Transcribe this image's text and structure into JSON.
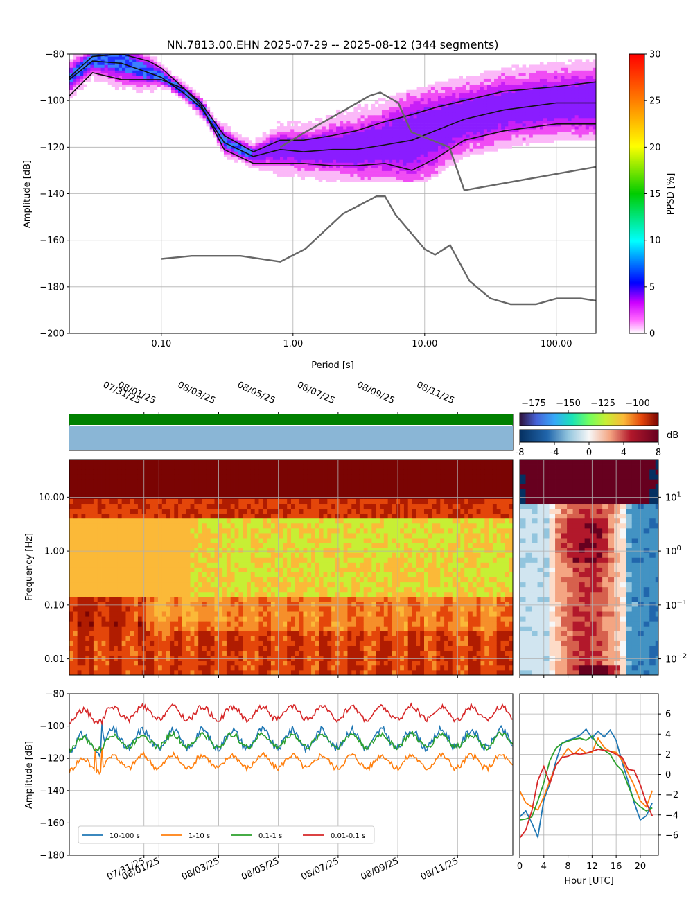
{
  "title": "NN.7813.00.EHN   2025-07-29 -- 2025-08-12  (344 segments)",
  "colors": {
    "series": [
      "#1f77b4",
      "#ff7f0e",
      "#2ca02c",
      "#d62728"
    ],
    "noise_model": "#666666",
    "availability_bar": "#008000",
    "gap_bar": "#8ab6d6"
  },
  "chart_data": [
    {
      "id": "ppsd",
      "type": "heatmap",
      "xlabel": "Period [s]",
      "ylabel": "Amplitude [dB]",
      "xscale": "log",
      "xlim": [
        0.02,
        200
      ],
      "ylim": [
        -200,
        -80
      ],
      "xticks": [
        0.1,
        1,
        10,
        100
      ],
      "xtick_labels": [
        "0.10",
        "1.00",
        "10.00",
        "100.00"
      ],
      "yticks": [
        -200,
        -180,
        -160,
        -140,
        -120,
        -100,
        -80
      ],
      "grid": true,
      "colorbar": {
        "label": "PPSD [%]",
        "range": [
          0,
          30
        ],
        "ticks": [
          0,
          5,
          10,
          15,
          20,
          25,
          30
        ]
      },
      "percentile_lines": [
        {
          "x": [
            0.02,
            0.03,
            0.05,
            0.08,
            0.1,
            0.15,
            0.2,
            0.3,
            0.5,
            0.8,
            1.2,
            2,
            3,
            5,
            8,
            12,
            20,
            40,
            100,
            200
          ],
          "y": [
            -90,
            -81,
            -80,
            -83,
            -86,
            -95,
            -101,
            -115,
            -122,
            -117,
            -117,
            -115,
            -113,
            -109,
            -106,
            -103,
            -100,
            -96,
            -94,
            -92
          ]
        },
        {
          "x": [
            0.02,
            0.03,
            0.05,
            0.08,
            0.1,
            0.15,
            0.2,
            0.3,
            0.5,
            0.8,
            1.2,
            2,
            3,
            5,
            8,
            12,
            20,
            40,
            100,
            200
          ],
          "y": [
            -91,
            -83,
            -84,
            -88,
            -90,
            -97,
            -103,
            -118,
            -124,
            -121,
            -122,
            -121,
            -121,
            -119,
            -117,
            -113,
            -108,
            -104,
            -101,
            -101
          ]
        },
        {
          "x": [
            0.02,
            0.03,
            0.05,
            0.08,
            0.1,
            0.15,
            0.2,
            0.3,
            0.5,
            0.8,
            1.2,
            2,
            3,
            5,
            8,
            12,
            20,
            40,
            100,
            200
          ],
          "y": [
            -98,
            -88,
            -91,
            -91,
            -91,
            -95,
            -102,
            -121,
            -127,
            -127,
            -127,
            -128,
            -128,
            -127,
            -130,
            -125,
            -117,
            -113,
            -110,
            -110
          ]
        }
      ],
      "noise_models": [
        {
          "name": "NHNM",
          "x": [
            0.1,
            0.17,
            0.4,
            0.8,
            1.24,
            2.4,
            4.3,
            5,
            6,
            10,
            12,
            15.6,
            21.9,
            31.6,
            45,
            70,
            101,
            154,
            200
          ],
          "y": [
            -168,
            -166.7,
            -166.7,
            -169.2,
            -163.7,
            -148.6,
            -141.1,
            -141.1,
            -149,
            -163.8,
            -166.2,
            -162.1,
            -177.5,
            -185,
            -187.5,
            -187.5,
            -185,
            -185,
            -186
          ]
        },
        {
          "name": "NLNM",
          "x": [
            0.8,
            1.2,
            2,
            3.8,
            4.6,
            6.3,
            7.9,
            15.4,
            20,
            354
          ],
          "y": [
            -120,
            -114,
            -107,
            -98,
            -96.5,
            -101,
            -113.5,
            -120,
            -138.5,
            -126
          ]
        }
      ]
    },
    {
      "id": "spectrogram",
      "type": "heatmap",
      "ylabel": "Frequency [Hz]",
      "yscale": "log",
      "ylim": [
        0.005,
        50
      ],
      "yticks": [
        0.01,
        0.1,
        1,
        10
      ],
      "ytick_labels": [
        "0.01",
        "0.10",
        "1.00",
        "10.00"
      ],
      "time_range": [
        "2025-07-29",
        "2025-08-12"
      ],
      "date_ticks": [
        "07/31/25",
        "08/01/25",
        "08/03/25",
        "08/05/25",
        "08/07/25",
        "08/09/25",
        "08/11/25"
      ],
      "colorbar": {
        "label": "",
        "range": [
          -185,
          -85
        ],
        "ticks": [
          -175,
          -150,
          -125,
          -100
        ]
      }
    },
    {
      "id": "diurnal",
      "type": "heatmap",
      "yscale": "log",
      "yticks": [
        0.01,
        0.1,
        1,
        10
      ],
      "ytick_labels": [
        "10<sup>-2</sup>",
        "10<sup>-1</sup>",
        "10<sup>0</sup>",
        "10<sup>1</sup>"
      ],
      "ytick_base": "10",
      "ytick_exps": [
        "−2",
        "−1",
        "0",
        "1"
      ],
      "colorbar": {
        "label": "dB",
        "range": [
          -8,
          8
        ],
        "ticks": [
          -8,
          -4,
          0,
          4,
          8
        ],
        "tick_labels": [
          "-8",
          "-4",
          "0",
          "4",
          "8"
        ]
      }
    },
    {
      "id": "band_timeseries",
      "type": "line",
      "ylabel": "Amplitude [dB]",
      "ylim": [
        -180,
        -80
      ],
      "yticks": [
        -180,
        -160,
        -140,
        -120,
        -100,
        -80
      ],
      "date_ticks": [
        "07/31/25",
        "08/01/25",
        "08/03/25",
        "08/05/25",
        "08/07/25",
        "08/09/25",
        "08/11/25"
      ],
      "grid": true,
      "legend": "bottom-left",
      "series": [
        {
          "name": "10-100 s",
          "mean": -108,
          "amp": 7
        },
        {
          "name": "1-10 s",
          "mean": -122,
          "amp": 5
        },
        {
          "name": "0.1-1 s",
          "mean": -109,
          "amp": 5
        },
        {
          "name": "0.01-0.1 s",
          "mean": -92,
          "amp": 5
        }
      ]
    },
    {
      "id": "band_diurnal",
      "type": "line",
      "xlabel": "Hour [UTC]",
      "xlim": [
        0,
        23
      ],
      "ylim": [
        -8,
        8
      ],
      "xticks": [
        0,
        4,
        8,
        12,
        16,
        20
      ],
      "yticks": [
        -6,
        -4,
        -2,
        0,
        2,
        4,
        6
      ],
      "ytick_labels": [
        "−6",
        "−4",
        "−2",
        "0",
        "2",
        "4",
        "6"
      ],
      "grid": true,
      "series": [
        {
          "name": "10-100 s",
          "x": [
            0,
            1,
            2,
            3,
            4,
            5,
            6,
            7,
            8,
            9,
            10,
            11,
            12,
            13,
            14,
            15,
            16,
            17,
            18,
            19,
            20,
            21,
            22
          ],
          "y": [
            -4.2,
            -3.6,
            -4.8,
            -6.2,
            -2.5,
            -0.9,
            1.3,
            3.1,
            3.4,
            3.6,
            3.9,
            4.5,
            3.6,
            4.3,
            3.7,
            4.4,
            3.4,
            1.2,
            -0.7,
            -2.8,
            -4.5,
            -4.1,
            -2.8
          ]
        },
        {
          "name": "1-10 s",
          "x": [
            0,
            1,
            2,
            3,
            4,
            5,
            6,
            7,
            8,
            9,
            10,
            11,
            12,
            13,
            14,
            15,
            16,
            17,
            18,
            19,
            20,
            21,
            22
          ],
          "y": [
            -1.6,
            -2.8,
            -3.2,
            -3.5,
            -2.2,
            -0.6,
            0.9,
            1.7,
            2.6,
            2.0,
            2.6,
            2.1,
            2.2,
            3.6,
            2.7,
            2.3,
            2.2,
            1.4,
            0.1,
            -1.1,
            -2.6,
            -3.2,
            -1.6
          ]
        },
        {
          "name": "0.1-1 s",
          "x": [
            0,
            1,
            2,
            3,
            4,
            5,
            6,
            7,
            8,
            9,
            10,
            11,
            12,
            13,
            14,
            15,
            16,
            17,
            18,
            19,
            20,
            21,
            22
          ],
          "y": [
            -4.5,
            -4.4,
            -4.2,
            -2.6,
            -0.8,
            1.4,
            2.6,
            3.1,
            3.3,
            3.5,
            3.6,
            3.4,
            3.8,
            2.9,
            2.4,
            2.0,
            1.0,
            0.4,
            -1.1,
            -2.6,
            -3.2,
            -3.6,
            -3.3
          ]
        },
        {
          "name": "0.01-0.1 s",
          "x": [
            0,
            1,
            2,
            3,
            4,
            5,
            6,
            7,
            8,
            9,
            10,
            11,
            12,
            13,
            14,
            15,
            16,
            17,
            18,
            19,
            20,
            21,
            22
          ],
          "y": [
            -6.3,
            -5.5,
            -3.6,
            -0.6,
            0.8,
            -0.9,
            0.9,
            1.7,
            1.8,
            2.1,
            2.0,
            2.1,
            2.3,
            2.5,
            2.4,
            2.3,
            2.0,
            1.7,
            0.5,
            0.4,
            -1.0,
            -2.8,
            -4.1
          ]
        }
      ]
    }
  ]
}
